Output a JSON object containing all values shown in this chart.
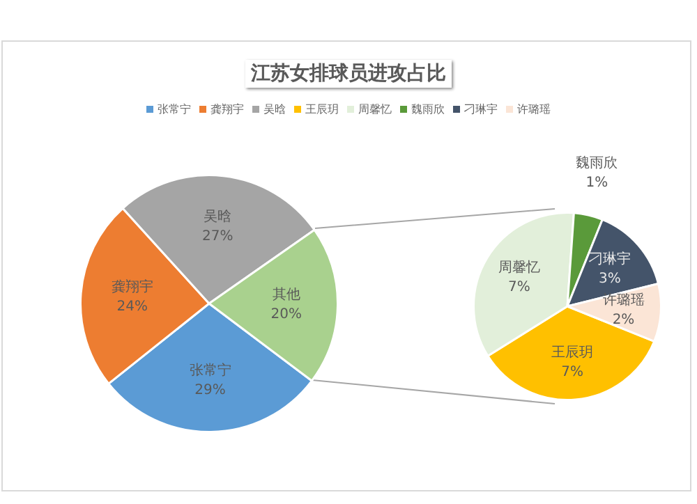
{
  "chart_data": [
    {
      "type": "pie",
      "title": "江苏女排球员进攻占比",
      "legend": "top",
      "categories": [
        "张常宁",
        "龚翔宇",
        "吴晗",
        "其他"
      ],
      "values": [
        29,
        24,
        27,
        20
      ],
      "colors": [
        "#5b9bd5",
        "#ed7d31",
        "#a5a5a5",
        "#a9d18e"
      ],
      "value_labels": [
        "29%",
        "24%",
        "27%",
        "20%"
      ]
    },
    {
      "type": "pie",
      "legend": "top",
      "categories": [
        "王辰玥",
        "周馨忆",
        "魏雨欣",
        "刁琳宇",
        "许璐瑶"
      ],
      "values": [
        7,
        7,
        1,
        3,
        2
      ],
      "colors": [
        "#ffc000",
        "#e2efda",
        "#5a9a3a",
        "#44546a",
        "#fbe5d6"
      ],
      "value_labels": [
        "7%",
        "7%",
        "1%",
        "3%",
        "2%"
      ]
    }
  ]
}
